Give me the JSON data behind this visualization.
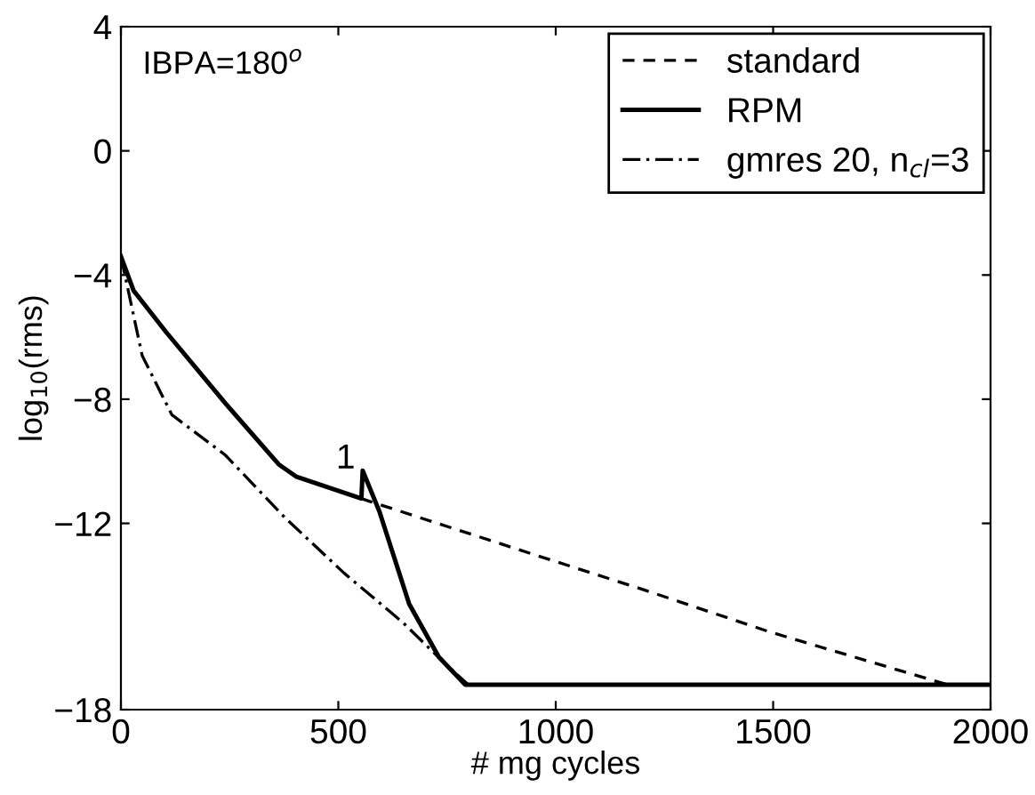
{
  "chart_data": {
    "type": "line",
    "xlabel": "# mg cycles",
    "ylabel": "log$_{10}$(rms)",
    "xlim": [
      0,
      2000
    ],
    "ylim": [
      -18,
      4
    ],
    "xticks": [
      0,
      500,
      1000,
      1500,
      2000
    ],
    "yticks": [
      4,
      0,
      -4,
      -8,
      -12,
      -18
    ],
    "grid": false,
    "legend": "top right",
    "marker": "none",
    "annotations": [
      "IBPA=180$^{o}$",
      {
        "text": "1",
        "x": 556,
        "y": -10.3
      }
    ],
    "series": [
      {
        "name": "standard",
        "color": "#000000",
        "line_style": "dashed",
        "x": [
          0,
          29,
          104,
          240,
          363,
          404,
          553,
          574,
          949,
          1194,
          1493,
          1902,
          2000
        ],
        "values": [
          -3.4,
          -4.5,
          -5.84,
          -8.13,
          -10.1,
          -10.5,
          -11.2,
          -11.3,
          -13.0,
          -14.1,
          -15.5,
          -17.2,
          -17.2
        ]
      },
      {
        "name": "RPM",
        "color": "#000000",
        "line_style": "solid",
        "x": [
          0,
          29,
          104,
          240,
          363,
          404,
          553,
          556,
          594,
          663,
          731,
          792,
          812,
          2000
        ],
        "values": [
          -3.4,
          -4.5,
          -5.84,
          -8.13,
          -10.1,
          -10.5,
          -11.2,
          -10.3,
          -11.6,
          -14.6,
          -16.3,
          -17.2,
          -17.2,
          -17.2
        ]
      },
      {
        "name": "gmres 20, n$_{cl}$=3",
        "color": "#000000",
        "line_style": "dashdot",
        "x": [
          0,
          49,
          117,
          240,
          376,
          513,
          649,
          744,
          799,
          850
        ],
        "values": [
          -3.4,
          -6.6,
          -8.5,
          -9.8,
          -11.8,
          -13.6,
          -15.2,
          -16.5,
          -17.2,
          -17.2
        ]
      }
    ]
  }
}
